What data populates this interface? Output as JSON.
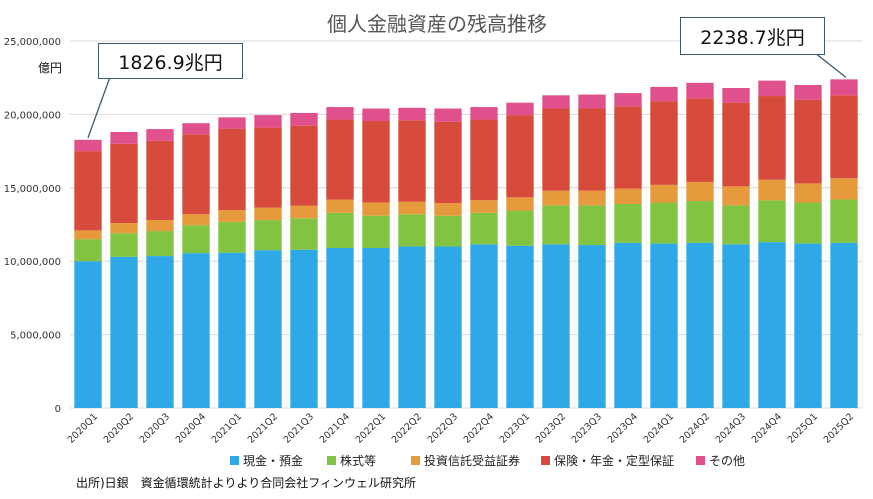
{
  "chart_data": {
    "type": "bar",
    "stacked": true,
    "title": "個人金融資産の残高推移",
    "unit_label": "億円",
    "ylim": [
      0,
      25000000
    ],
    "yticks": [
      "0",
      "5,000,000",
      "10,000,000",
      "15,000,000",
      "20,000,000",
      "25,000,000"
    ],
    "ytick_values": [
      0,
      5000000,
      10000000,
      15000000,
      20000000,
      25000000
    ],
    "grid": true,
    "legend_position": "bottom",
    "categories": [
      "2020Q1",
      "2020Q2",
      "2020Q3",
      "2020Q4",
      "2021Q1",
      "2021Q2",
      "2021Q3",
      "2021Q4",
      "2022Q1",
      "2022Q2",
      "2022Q3",
      "2022Q4",
      "2023Q1",
      "2023Q2",
      "2023Q3",
      "2023Q4",
      "2024Q1",
      "2024Q2",
      "2024Q3",
      "2024Q4",
      "2025Q1",
      "2025Q2"
    ],
    "series": [
      {
        "name": "現金・預金",
        "color": "#2fa8e8",
        "values": [
          10000000,
          10300000,
          10350000,
          10550000,
          10580000,
          10750000,
          10780000,
          10900000,
          10900000,
          11000000,
          11000000,
          11150000,
          11050000,
          11150000,
          11100000,
          11250000,
          11200000,
          11250000,
          11150000,
          11300000,
          11200000,
          11250000
        ]
      },
      {
        "name": "株式等",
        "color": "#82c341",
        "values": [
          1500000,
          1600000,
          1700000,
          1900000,
          2100000,
          2050000,
          2150000,
          2400000,
          2200000,
          2200000,
          2100000,
          2150000,
          2400000,
          2650000,
          2700000,
          2650000,
          2800000,
          2850000,
          2650000,
          2850000,
          2800000,
          2950000
        ]
      },
      {
        "name": "投資信託受益証券",
        "color": "#e79a3c",
        "values": [
          600000,
          700000,
          750000,
          750000,
          800000,
          850000,
          850000,
          900000,
          900000,
          850000,
          850000,
          850000,
          900000,
          1000000,
          1000000,
          1050000,
          1200000,
          1300000,
          1300000,
          1400000,
          1300000,
          1450000
        ]
      },
      {
        "name": "保険・年金・定型保証",
        "color": "#d64b3b",
        "values": [
          5400000,
          5400000,
          5400000,
          5450000,
          5550000,
          5450000,
          5450000,
          5450000,
          5550000,
          5550000,
          5550000,
          5500000,
          5600000,
          5600000,
          5600000,
          5600000,
          5700000,
          5700000,
          5700000,
          5700000,
          5700000,
          5650000
        ]
      },
      {
        "name": "その他",
        "color": "#e0508c",
        "values": [
          769000,
          800000,
          800000,
          750000,
          770000,
          850000,
          870000,
          850000,
          850000,
          850000,
          900000,
          850000,
          850000,
          900000,
          950000,
          900000,
          970000,
          1050000,
          1000000,
          1050000,
          1000000,
          1087000
        ]
      }
    ],
    "annotations": [
      {
        "text": "1826.9兆円",
        "category": "2020Q1"
      },
      {
        "text": "2238.7兆円",
        "category": "2025Q2"
      }
    ],
    "source": "出所)日銀　資金循環統計よりより合同会社フィンウェル研究所"
  }
}
